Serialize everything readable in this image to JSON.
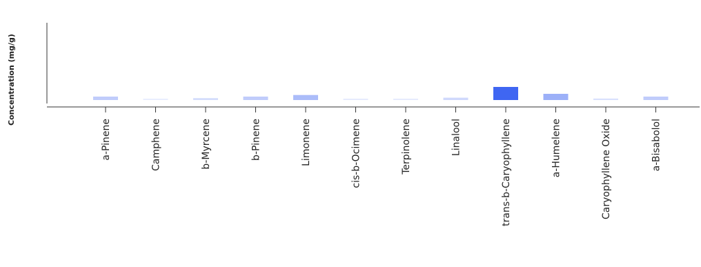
{
  "chart_data": {
    "type": "bar",
    "title": "",
    "xlabel": "",
    "ylabel": "Concentration (mg/g)",
    "grid": false,
    "legend": "none",
    "categories": [
      "a-Pinene",
      "Camphene",
      "b-Myrcene",
      "b-Pinene",
      "Limonene",
      "cis-b-Ocimene",
      "Terpinolene",
      "Linalool",
      "trans-b-Caryophyllene",
      "a-Humelene",
      "Caryophyllene Oxide",
      "a-Bisabolol"
    ],
    "values": [
      0.9,
      0.1,
      0.5,
      0.9,
      1.3,
      0.15,
      0.15,
      0.6,
      3.4,
      1.6,
      0.4,
      0.9
    ],
    "ylim": [
      0,
      20
    ],
    "colors": {
      "bar_max": "#3f66f2",
      "bar_min": "#eef1fe",
      "axis": "#333333"
    }
  }
}
